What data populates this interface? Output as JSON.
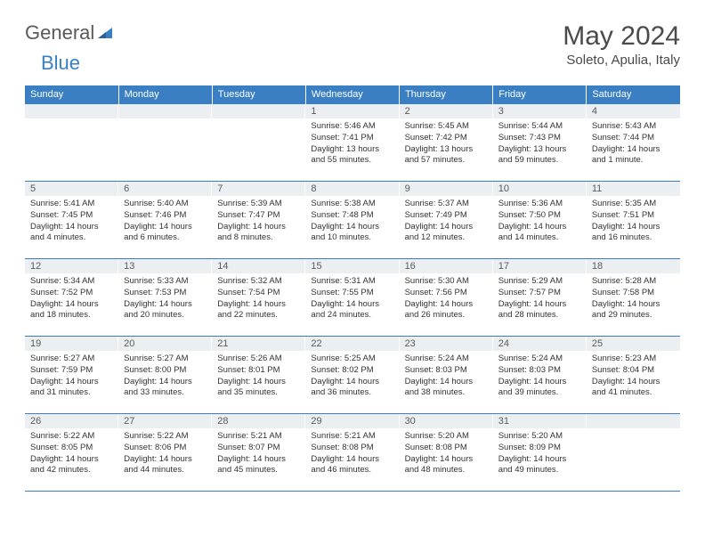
{
  "logo": {
    "part1": "General",
    "part2": "Blue"
  },
  "title": "May 2024",
  "location": "Soleto, Apulia, Italy",
  "weekdays": [
    "Sunday",
    "Monday",
    "Tuesday",
    "Wednesday",
    "Thursday",
    "Friday",
    "Saturday"
  ],
  "colors": {
    "header_bg": "#3a7fc4",
    "header_text": "#ffffff",
    "daynum_bg": "#eceff1",
    "rule": "#3a7fc4"
  },
  "weeks": [
    [
      null,
      null,
      null,
      {
        "n": "1",
        "sr": "5:46 AM",
        "ss": "7:41 PM",
        "dl": "13 hours and 55 minutes."
      },
      {
        "n": "2",
        "sr": "5:45 AM",
        "ss": "7:42 PM",
        "dl": "13 hours and 57 minutes."
      },
      {
        "n": "3",
        "sr": "5:44 AM",
        "ss": "7:43 PM",
        "dl": "13 hours and 59 minutes."
      },
      {
        "n": "4",
        "sr": "5:43 AM",
        "ss": "7:44 PM",
        "dl": "14 hours and 1 minute."
      }
    ],
    [
      {
        "n": "5",
        "sr": "5:41 AM",
        "ss": "7:45 PM",
        "dl": "14 hours and 4 minutes."
      },
      {
        "n": "6",
        "sr": "5:40 AM",
        "ss": "7:46 PM",
        "dl": "14 hours and 6 minutes."
      },
      {
        "n": "7",
        "sr": "5:39 AM",
        "ss": "7:47 PM",
        "dl": "14 hours and 8 minutes."
      },
      {
        "n": "8",
        "sr": "5:38 AM",
        "ss": "7:48 PM",
        "dl": "14 hours and 10 minutes."
      },
      {
        "n": "9",
        "sr": "5:37 AM",
        "ss": "7:49 PM",
        "dl": "14 hours and 12 minutes."
      },
      {
        "n": "10",
        "sr": "5:36 AM",
        "ss": "7:50 PM",
        "dl": "14 hours and 14 minutes."
      },
      {
        "n": "11",
        "sr": "5:35 AM",
        "ss": "7:51 PM",
        "dl": "14 hours and 16 minutes."
      }
    ],
    [
      {
        "n": "12",
        "sr": "5:34 AM",
        "ss": "7:52 PM",
        "dl": "14 hours and 18 minutes."
      },
      {
        "n": "13",
        "sr": "5:33 AM",
        "ss": "7:53 PM",
        "dl": "14 hours and 20 minutes."
      },
      {
        "n": "14",
        "sr": "5:32 AM",
        "ss": "7:54 PM",
        "dl": "14 hours and 22 minutes."
      },
      {
        "n": "15",
        "sr": "5:31 AM",
        "ss": "7:55 PM",
        "dl": "14 hours and 24 minutes."
      },
      {
        "n": "16",
        "sr": "5:30 AM",
        "ss": "7:56 PM",
        "dl": "14 hours and 26 minutes."
      },
      {
        "n": "17",
        "sr": "5:29 AM",
        "ss": "7:57 PM",
        "dl": "14 hours and 28 minutes."
      },
      {
        "n": "18",
        "sr": "5:28 AM",
        "ss": "7:58 PM",
        "dl": "14 hours and 29 minutes."
      }
    ],
    [
      {
        "n": "19",
        "sr": "5:27 AM",
        "ss": "7:59 PM",
        "dl": "14 hours and 31 minutes."
      },
      {
        "n": "20",
        "sr": "5:27 AM",
        "ss": "8:00 PM",
        "dl": "14 hours and 33 minutes."
      },
      {
        "n": "21",
        "sr": "5:26 AM",
        "ss": "8:01 PM",
        "dl": "14 hours and 35 minutes."
      },
      {
        "n": "22",
        "sr": "5:25 AM",
        "ss": "8:02 PM",
        "dl": "14 hours and 36 minutes."
      },
      {
        "n": "23",
        "sr": "5:24 AM",
        "ss": "8:03 PM",
        "dl": "14 hours and 38 minutes."
      },
      {
        "n": "24",
        "sr": "5:24 AM",
        "ss": "8:03 PM",
        "dl": "14 hours and 39 minutes."
      },
      {
        "n": "25",
        "sr": "5:23 AM",
        "ss": "8:04 PM",
        "dl": "14 hours and 41 minutes."
      }
    ],
    [
      {
        "n": "26",
        "sr": "5:22 AM",
        "ss": "8:05 PM",
        "dl": "14 hours and 42 minutes."
      },
      {
        "n": "27",
        "sr": "5:22 AM",
        "ss": "8:06 PM",
        "dl": "14 hours and 44 minutes."
      },
      {
        "n": "28",
        "sr": "5:21 AM",
        "ss": "8:07 PM",
        "dl": "14 hours and 45 minutes."
      },
      {
        "n": "29",
        "sr": "5:21 AM",
        "ss": "8:08 PM",
        "dl": "14 hours and 46 minutes."
      },
      {
        "n": "30",
        "sr": "5:20 AM",
        "ss": "8:08 PM",
        "dl": "14 hours and 48 minutes."
      },
      {
        "n": "31",
        "sr": "5:20 AM",
        "ss": "8:09 PM",
        "dl": "14 hours and 49 minutes."
      },
      null
    ]
  ],
  "labels": {
    "sunrise": "Sunrise:",
    "sunset": "Sunset:",
    "daylight": "Daylight:"
  }
}
